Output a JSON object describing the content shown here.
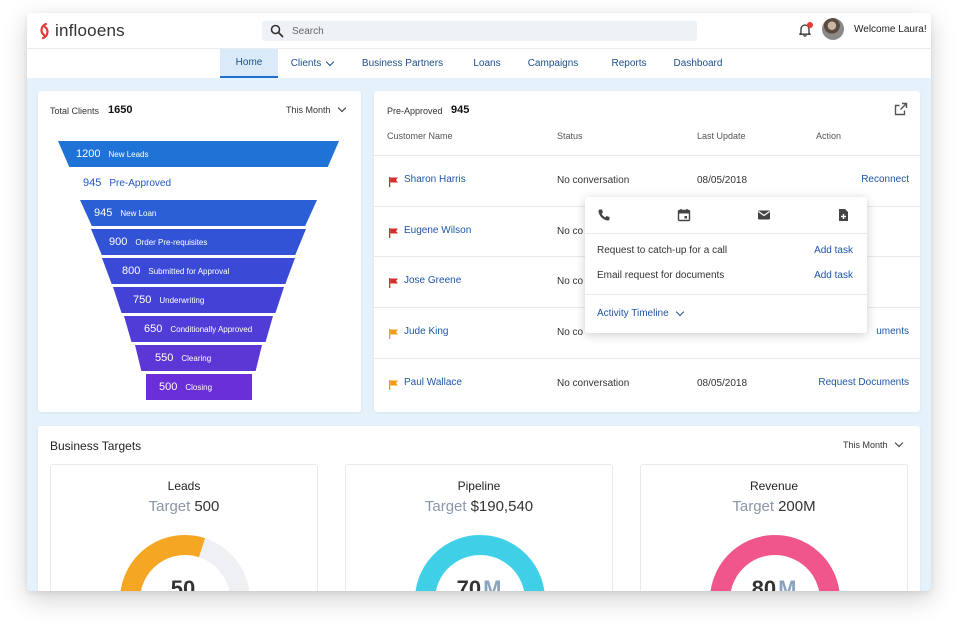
{
  "header": {
    "logo_text": "inflooens",
    "search_placeholder": "Search",
    "welcome": "Welcome Laura!"
  },
  "nav": {
    "items": [
      {
        "label": "Home",
        "active": true
      },
      {
        "label": "Clients",
        "dropdown": true
      },
      {
        "label": "Business Partners"
      },
      {
        "label": "Loans"
      },
      {
        "label": "Campaigns"
      },
      {
        "label": "Reports"
      },
      {
        "label": "Dashboard"
      }
    ]
  },
  "funnel": {
    "total_label": "Total Clients",
    "total_value": "1650",
    "period": "This Month",
    "stages": [
      {
        "value": "1200",
        "label": "New Leads"
      },
      {
        "value": "945",
        "label": "Pre-Approved",
        "highlight": true
      },
      {
        "value": "945",
        "label": "New Loan"
      },
      {
        "value": "900",
        "label": "Order Pre-requisites"
      },
      {
        "value": "800",
        "label": "Submitted for Approval"
      },
      {
        "value": "750",
        "label": "Underwriting"
      },
      {
        "value": "650",
        "label": "Conditionally Approved"
      },
      {
        "value": "550",
        "label": "Clearing"
      },
      {
        "value": "500",
        "label": "Closing"
      }
    ]
  },
  "pre_approved": {
    "label": "Pre-Approved",
    "value": "945",
    "columns": [
      "Customer Name",
      "Status",
      "Last Update",
      "Action"
    ],
    "rows": [
      {
        "name": "Sharon Harris",
        "status": "No conversation",
        "date": "08/05/2018",
        "action": "Reconnect",
        "flag": "#d32f2f"
      },
      {
        "name": "Eugene Wilson",
        "status": "No co",
        "date": "",
        "action": "",
        "flag": "#d32f2f"
      },
      {
        "name": "Jose Greene",
        "status": "No co",
        "date": "",
        "action": "",
        "flag": "#d32f2f"
      },
      {
        "name": "Jude King",
        "status": "No co",
        "date": "",
        "action": "uments",
        "flag": "#f39c12"
      },
      {
        "name": "Paul Wallace",
        "status": "No conversation",
        "date": "08/05/2018",
        "action": "Request Documents",
        "flag": "#f39c12"
      }
    ]
  },
  "popup": {
    "tasks": [
      {
        "label": "Request to catch-up for a call",
        "action": "Add task"
      },
      {
        "label": "Email request for documents",
        "action": "Add task"
      }
    ],
    "timeline_label": "Activity Timeline"
  },
  "targets": {
    "title": "Business Targets",
    "period": "This Month",
    "target_word": "Target",
    "items": [
      {
        "title": "Leads",
        "target": "500",
        "value": "50",
        "unit": "",
        "fraction": 0.3,
        "color": "#f5a623"
      },
      {
        "title": "Pipeline",
        "target": "$190,540",
        "value": "70",
        "unit": "M",
        "fraction": 0.55,
        "color": "#3fd0e8"
      },
      {
        "title": "Revenue",
        "target": "200M",
        "value": "80",
        "unit": "M",
        "fraction": 0.6,
        "color": "#f0568c"
      }
    ]
  }
}
